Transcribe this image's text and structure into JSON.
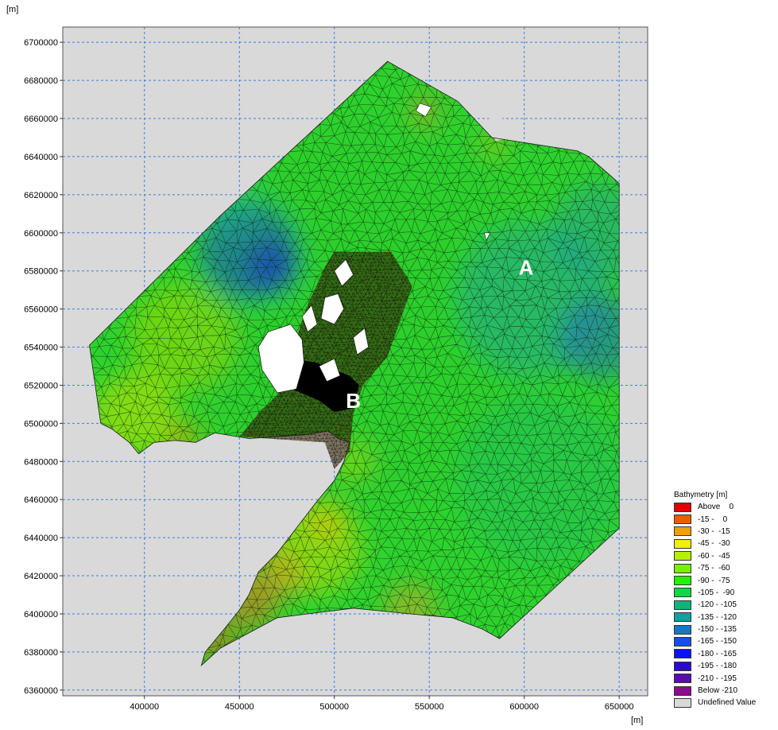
{
  "axes": {
    "y_unit": "[m]",
    "x_unit": "[m]",
    "x_ticks": [
      400000,
      450000,
      500000,
      550000,
      600000,
      650000
    ],
    "y_ticks": [
      6360000,
      6380000,
      6400000,
      6420000,
      6440000,
      6460000,
      6480000,
      6500000,
      6520000,
      6540000,
      6560000,
      6580000,
      6600000,
      6620000,
      6640000,
      6660000,
      6680000,
      6700000
    ],
    "x_range": [
      357000,
      665000
    ],
    "y_range": [
      6357000,
      6708000
    ],
    "grid": true,
    "background_color": "#d9d9d9",
    "grid_color": "#3b7fdc"
  },
  "domain": {
    "outline": [
      [
        528000,
        6690000
      ],
      [
        565000,
        6669000
      ],
      [
        583000,
        6650000
      ],
      [
        628000,
        6643000
      ],
      [
        634000,
        6640000
      ],
      [
        650000,
        6626000
      ],
      [
        650000,
        6445000
      ],
      [
        587000,
        6387000
      ],
      [
        578000,
        6392000
      ],
      [
        562000,
        6398000
      ],
      [
        540000,
        6400000
      ],
      [
        510000,
        6403000
      ],
      [
        470000,
        6398000
      ],
      [
        440000,
        6382000
      ],
      [
        430000,
        6373000
      ],
      [
        432000,
        6380000
      ],
      [
        442000,
        6392000
      ],
      [
        450000,
        6402000
      ],
      [
        455000,
        6410000
      ],
      [
        460000,
        6422000
      ],
      [
        470000,
        6432000
      ],
      [
        480000,
        6445000
      ],
      [
        490000,
        6458000
      ],
      [
        500000,
        6470000
      ],
      [
        505000,
        6480000
      ],
      [
        508000,
        6490000
      ],
      [
        502000,
        6492000
      ],
      [
        497000,
        6496000
      ],
      [
        485000,
        6494000
      ],
      [
        470000,
        6493000
      ],
      [
        455000,
        6492000
      ],
      [
        437000,
        6495000
      ],
      [
        427000,
        6490000
      ],
      [
        416000,
        6491000
      ],
      [
        405000,
        6490000
      ],
      [
        397000,
        6484000
      ],
      [
        392000,
        6490000
      ],
      [
        383000,
        6497000
      ],
      [
        377000,
        6500000
      ],
      [
        371000,
        6541000
      ],
      [
        440000,
        6609000
      ],
      [
        528000,
        6690000
      ]
    ],
    "cut_cells": [
      [
        [
          580000,
          6665000
        ],
        [
          585000,
          6648000
        ],
        [
          591000,
          6650000
        ],
        [
          588000,
          6662000
        ]
      ]
    ],
    "islands": [
      [
        [
          545000,
          6668000
        ],
        [
          551000,
          6666000
        ],
        [
          548000,
          6661000
        ],
        [
          543000,
          6664000
        ]
      ],
      [
        [
          579000,
          6600000
        ],
        [
          582000,
          6600000
        ],
        [
          580000,
          6596000
        ]
      ]
    ],
    "fine_mesh_zone": [
      [
        500000,
        6590000
      ],
      [
        530000,
        6590000
      ],
      [
        541000,
        6572000
      ],
      [
        528000,
        6535000
      ],
      [
        515000,
        6520000
      ],
      [
        510000,
        6505000
      ],
      [
        508000,
        6485000
      ],
      [
        500000,
        6476000
      ],
      [
        495000,
        6490000
      ],
      [
        465000,
        6492000
      ],
      [
        450000,
        6493000
      ],
      [
        460000,
        6505000
      ],
      [
        470000,
        6515000
      ],
      [
        477000,
        6535000
      ],
      [
        485000,
        6560000
      ],
      [
        495000,
        6582000
      ]
    ],
    "land_black": [
      [
        471000,
        6535000
      ],
      [
        490000,
        6532000
      ],
      [
        508000,
        6525000
      ],
      [
        513000,
        6520000
      ],
      [
        510000,
        6508000
      ],
      [
        500000,
        6506000
      ],
      [
        492000,
        6512000
      ],
      [
        480000,
        6517000
      ],
      [
        470000,
        6522000
      ]
    ],
    "land_white": [
      [
        [
          465000,
          6548000
        ],
        [
          477000,
          6552000
        ],
        [
          483000,
          6544000
        ],
        [
          484000,
          6532000
        ],
        [
          480000,
          6518000
        ],
        [
          470000,
          6516000
        ],
        [
          462000,
          6528000
        ],
        [
          460000,
          6540000
        ]
      ],
      [
        [
          495000,
          6566000
        ],
        [
          502000,
          6568000
        ],
        [
          505000,
          6560000
        ],
        [
          500000,
          6552000
        ],
        [
          493000,
          6555000
        ]
      ],
      [
        [
          500000,
          6580000
        ],
        [
          506000,
          6586000
        ],
        [
          510000,
          6578000
        ],
        [
          504000,
          6572000
        ]
      ],
      [
        [
          510000,
          6545000
        ],
        [
          516000,
          6550000
        ],
        [
          518000,
          6540000
        ],
        [
          512000,
          6536000
        ]
      ],
      [
        [
          483000,
          6556000
        ],
        [
          488000,
          6562000
        ],
        [
          491000,
          6552000
        ],
        [
          486000,
          6548000
        ]
      ],
      [
        [
          492000,
          6530000
        ],
        [
          500000,
          6534000
        ],
        [
          503000,
          6525000
        ],
        [
          496000,
          6522000
        ]
      ]
    ]
  },
  "field_blobs": [
    {
      "x": 520000,
      "y": 6560000,
      "r": 100000,
      "color": "#2fcc2f",
      "a": 0.35
    },
    {
      "x": 420000,
      "y": 6545000,
      "r": 28000,
      "color": "#9ed800",
      "a": 0.55
    },
    {
      "x": 395000,
      "y": 6505000,
      "r": 22000,
      "color": "#c8e400",
      "a": 0.55
    },
    {
      "x": 455000,
      "y": 6590000,
      "r": 26000,
      "color": "#1a4fd0",
      "a": 0.55
    },
    {
      "x": 467000,
      "y": 6582000,
      "r": 14000,
      "color": "#1a2ecc",
      "a": 0.5
    },
    {
      "x": 605000,
      "y": 6565000,
      "r": 40000,
      "color": "#1f9ea8",
      "a": 0.45
    },
    {
      "x": 640000,
      "y": 6545000,
      "r": 22000,
      "color": "#1f66c8",
      "a": 0.5
    },
    {
      "x": 640000,
      "y": 6600000,
      "r": 26000,
      "color": "#1f9aa0",
      "a": 0.45
    },
    {
      "x": 610000,
      "y": 6470000,
      "r": 45000,
      "color": "#15b66d",
      "a": 0.35
    },
    {
      "x": 440000,
      "y": 6620000,
      "r": 22000,
      "color": "#1fc0a0",
      "a": 0.3
    },
    {
      "x": 490000,
      "y": 6435000,
      "r": 25000,
      "color": "#d0e000",
      "a": 0.5
    },
    {
      "x": 495000,
      "y": 6447000,
      "r": 10000,
      "color": "#f0c000",
      "a": 0.5
    },
    {
      "x": 470000,
      "y": 6420000,
      "r": 14000,
      "color": "#f09020",
      "a": 0.5
    },
    {
      "x": 455000,
      "y": 6405000,
      "r": 14000,
      "color": "#e87020",
      "a": 0.55
    },
    {
      "x": 438000,
      "y": 6385000,
      "r": 10000,
      "color": "#e06020",
      "a": 0.6
    },
    {
      "x": 540000,
      "y": 6403000,
      "r": 14000,
      "color": "#e8a020",
      "a": 0.45
    },
    {
      "x": 510000,
      "y": 6480000,
      "r": 10000,
      "color": "#c8e000",
      "a": 0.4
    },
    {
      "x": 548000,
      "y": 6665000,
      "r": 7000,
      "color": "#e88020",
      "a": 0.55
    },
    {
      "x": 585000,
      "y": 6648000,
      "r": 6000,
      "color": "#e8c000",
      "a": 0.5
    },
    {
      "x": 420000,
      "y": 6492000,
      "r": 10000,
      "color": "#e0a000",
      "a": 0.5
    }
  ],
  "labels": {
    "A": {
      "text": "A",
      "x": 601000,
      "y": 6578000
    },
    "B": {
      "text": "B",
      "x": 510000,
      "y": 6508000
    }
  },
  "legend": {
    "title": "Bathymetry [m]",
    "items": [
      {
        "label": "Above    0",
        "color": "#e00000"
      },
      {
        "label": "-15 -    0",
        "color": "#f05a00"
      },
      {
        "label": "-30 -  -15",
        "color": "#f0a000"
      },
      {
        "label": "-45 -  -30",
        "color": "#f0f000"
      },
      {
        "label": "-60 -  -45",
        "color": "#b4f000"
      },
      {
        "label": "-75 -  -60",
        "color": "#78f000"
      },
      {
        "label": "-90 -  -75",
        "color": "#28f000"
      },
      {
        "label": "-105 -  -90",
        "color": "#10d840"
      },
      {
        "label": "-120 - -105",
        "color": "#10b478"
      },
      {
        "label": "-135 - -120",
        "color": "#10a0a0"
      },
      {
        "label": "-150 - -135",
        "color": "#1478c8"
      },
      {
        "label": "-165 - -150",
        "color": "#1450e6"
      },
      {
        "label": "-180 - -165",
        "color": "#0a14f0"
      },
      {
        "label": "-195 - -180",
        "color": "#2a0ad0"
      },
      {
        "label": "-210 - -195",
        "color": "#5a0ab4"
      },
      {
        "label": "Below -210",
        "color": "#8c0a8c"
      },
      {
        "label": "Undefined Value",
        "color": "#d9d9d9"
      }
    ]
  }
}
